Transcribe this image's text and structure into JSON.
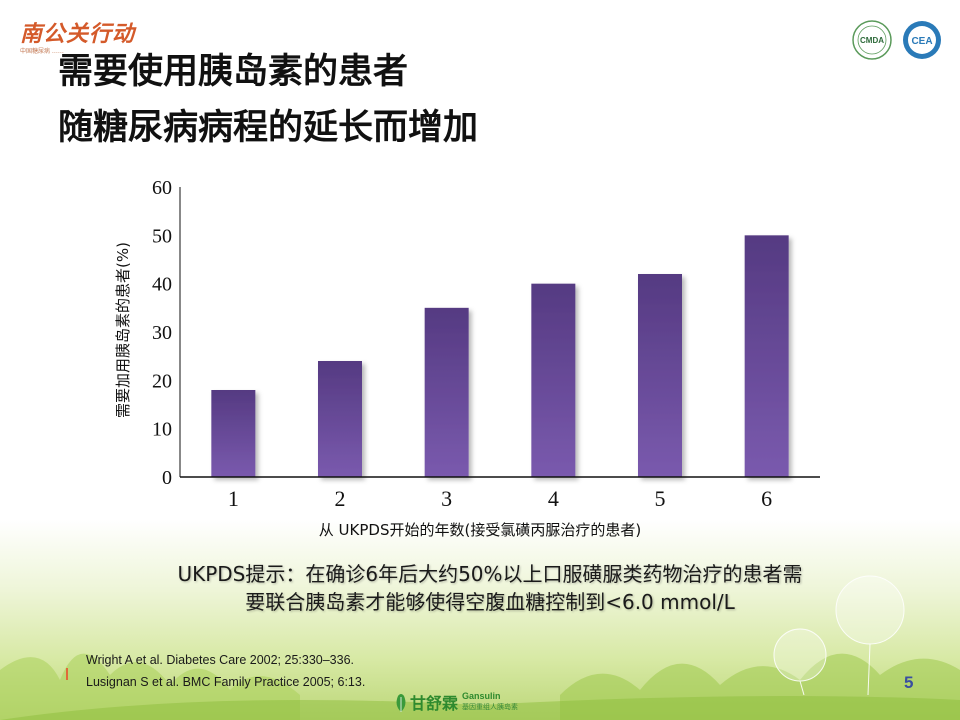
{
  "header": {
    "brand_text": "南公关行动",
    "brand_sub": "中国糖尿病 ……",
    "logo_left": "CMDA",
    "logo_right": "CEA"
  },
  "title": {
    "line1": "需要使用胰岛素的患者",
    "line2": "随糖尿病病程的延长而增加"
  },
  "chart_data": {
    "type": "bar",
    "categories": [
      "1",
      "2",
      "3",
      "4",
      "5",
      "6"
    ],
    "values": [
      18,
      24,
      35,
      40,
      42,
      50
    ],
    "ylim": [
      0,
      60
    ],
    "yticks": [
      0,
      10,
      20,
      30,
      40,
      50,
      60
    ],
    "xlabel": "从 UKPDS开始的年数(接受氯磺丙脲治疗的患者)",
    "ylabel": "需要加用胰岛素的患者(%)",
    "bar_color": "#6a4a9a",
    "grid": false
  },
  "note": {
    "line1": "UKPDS提示：在确诊6年后大约50%以上口服磺脲类药物治疗的患者需",
    "line2": "要联合胰岛素才能够使得空腹血糖控制到<6.0 mmol/L"
  },
  "references": [
    "Wright A et al. Diabetes Care 2002; 25:330–336.",
    "Lusignan S et al. BMC Family Practice 2005; 6:13."
  ],
  "footer": {
    "page_number": "5",
    "product_cn": "甘舒霖",
    "product_en": "Gansulin",
    "product_sub": "基因重组人胰岛素"
  }
}
